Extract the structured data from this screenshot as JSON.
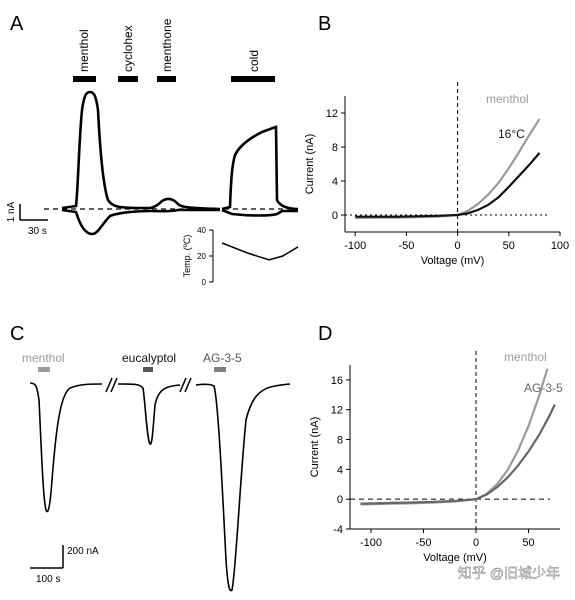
{
  "colors": {
    "black": "#000000",
    "trace": "#111111",
    "grey": "#9a9a9a",
    "dark_grey": "#555555",
    "watermark": "#ffffff"
  },
  "panels": {
    "a": {
      "letter": "A"
    },
    "b": {
      "letter": "B"
    },
    "c": {
      "letter": "C"
    },
    "d": {
      "letter": "D"
    }
  },
  "watermark": "知乎 @旧城少年",
  "chart_data": [
    {
      "panel": "A",
      "type": "line",
      "stimuli": [
        "menthol",
        "cyclohex",
        "menthone",
        "cold"
      ],
      "scale_bar": {
        "current": "1 nA",
        "time": "30 s"
      },
      "inset": {
        "ylabel": "Temp. (ºC)",
        "ticks": [
          "40",
          "20",
          "0"
        ],
        "trace_celsius": [
          [
            0,
            30
          ],
          [
            0.35,
            22
          ],
          [
            0.62,
            17
          ],
          [
            0.8,
            20
          ],
          [
            1,
            27
          ]
        ]
      },
      "note": "current traces: outward (up) and inward (down) responses at two holding potentials; peak menthol ≈ 2.9 nA, cold ≈ 2.0 nA (relative, from 1 nA scale bar)",
      "traces_nA": {
        "menthol_up": [
          [
            0,
            0
          ],
          [
            0.1,
            0.3
          ],
          [
            0.2,
            1.6
          ],
          [
            0.3,
            2.6
          ],
          [
            0.45,
            2.9
          ],
          [
            0.6,
            2.6
          ],
          [
            0.75,
            1.0
          ],
          [
            0.9,
            0.2
          ],
          [
            1,
            0.05
          ]
        ],
        "menthol_down": [
          [
            0,
            0
          ],
          [
            0.15,
            -0.2
          ],
          [
            0.35,
            -0.4
          ],
          [
            0.6,
            -0.3
          ],
          [
            0.85,
            -0.12
          ],
          [
            1,
            -0.05
          ]
        ],
        "cold_up": [
          [
            0,
            0
          ],
          [
            0.08,
            1.1
          ],
          [
            0.3,
            1.6
          ],
          [
            0.6,
            1.8
          ],
          [
            0.92,
            1.9
          ],
          [
            1,
            1.9
          ]
        ],
        "cold_down": [
          [
            0,
            0
          ],
          [
            0.1,
            -0.1
          ],
          [
            0.6,
            -0.12
          ],
          [
            1,
            -0.12
          ]
        ]
      }
    },
    {
      "panel": "B",
      "type": "line",
      "xlabel": "Voltage (mV)",
      "ylabel": "Current (nA)",
      "xlim": [
        -110,
        100
      ],
      "ylim": [
        -2,
        14
      ],
      "xticks": [
        -100,
        -50,
        0,
        50,
        100
      ],
      "yticks": [
        0,
        4,
        8,
        12
      ],
      "series": [
        {
          "name": "menthol",
          "color": "#9a9a9a",
          "x": [
            -100,
            -80,
            -60,
            -40,
            -20,
            0,
            10,
            20,
            30,
            40,
            50,
            60,
            70,
            80
          ],
          "y": [
            -0.35,
            -0.3,
            -0.3,
            -0.25,
            -0.2,
            0,
            0.5,
            1.3,
            2.4,
            3.8,
            5.5,
            7.4,
            9.4,
            11.3
          ]
        },
        {
          "name": "16°C",
          "color": "#111111",
          "x": [
            -100,
            -80,
            -60,
            -40,
            -20,
            0,
            10,
            20,
            30,
            40,
            50,
            60,
            70,
            80
          ],
          "y": [
            -0.2,
            -0.2,
            -0.2,
            -0.15,
            -0.1,
            0,
            0.2,
            0.6,
            1.2,
            2.1,
            3.3,
            4.6,
            5.9,
            7.3
          ]
        }
      ]
    },
    {
      "panel": "C",
      "type": "line",
      "stimuli": [
        "menthol",
        "eucalyptol",
        "AG-3-5"
      ],
      "scale_bar": {
        "current": "200 nA",
        "time": "100 s"
      },
      "peaks_nA": {
        "menthol": -500,
        "eucalyptol": -230,
        "AG-3-5": -800
      }
    },
    {
      "panel": "D",
      "type": "line",
      "xlabel": "Voltage (mV)",
      "ylabel": "Current (nA)",
      "xlim": [
        -120,
        80
      ],
      "ylim": [
        -4,
        18
      ],
      "xticks": [
        -100,
        -50,
        0,
        50
      ],
      "yticks": [
        -4,
        0,
        4,
        8,
        12,
        16
      ],
      "series": [
        {
          "name": "menthol",
          "color": "#9a9a9a",
          "x": [
            -110,
            -80,
            -60,
            -40,
            -20,
            0,
            10,
            20,
            30,
            40,
            50,
            60,
            68
          ],
          "y": [
            -0.7,
            -0.6,
            -0.55,
            -0.45,
            -0.3,
            0,
            0.7,
            2.0,
            3.9,
            6.5,
            9.8,
            13.8,
            17.5
          ]
        },
        {
          "name": "AG-3-5",
          "color": "#666666",
          "x": [
            -110,
            -80,
            -60,
            -40,
            -20,
            0,
            10,
            20,
            30,
            40,
            50,
            60,
            70,
            75
          ],
          "y": [
            -0.6,
            -0.5,
            -0.45,
            -0.35,
            -0.25,
            0,
            0.6,
            1.6,
            2.9,
            4.5,
            6.4,
            8.6,
            11.2,
            12.7
          ]
        }
      ]
    }
  ]
}
